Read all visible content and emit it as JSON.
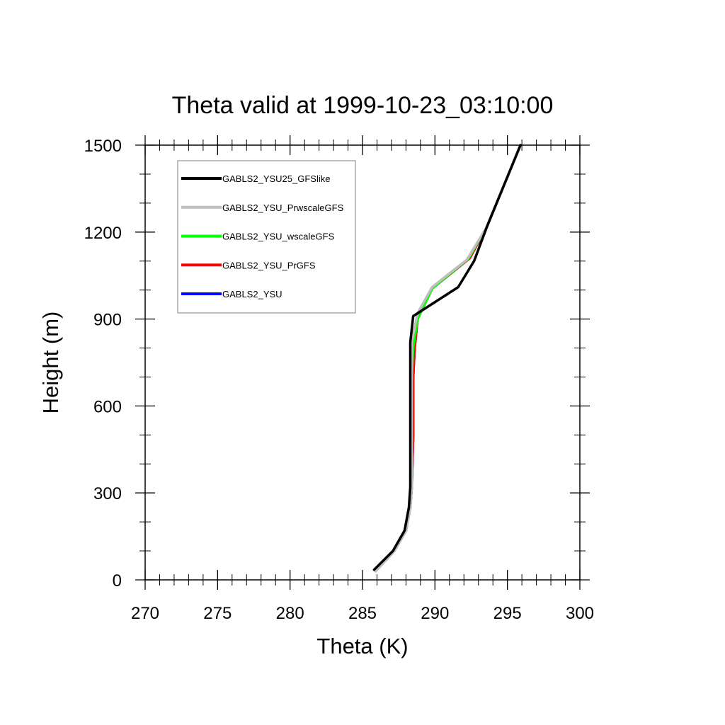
{
  "chart_data": {
    "type": "line",
    "title": "Theta valid at 1999-10-23_03:10:00",
    "xlabel": "Theta (K)",
    "ylabel": "Height (m)",
    "xlim": [
      270,
      300
    ],
    "ylim": [
      0,
      1500
    ],
    "x_ticks": [
      "270",
      "275",
      "280",
      "285",
      "290",
      "295",
      "300"
    ],
    "y_ticks": [
      "0",
      "300",
      "600",
      "900",
      "1200",
      "1500"
    ],
    "x_tick_values": [
      270,
      275,
      280,
      285,
      290,
      295,
      300
    ],
    "y_tick_values": [
      0,
      300,
      600,
      900,
      1200,
      1500
    ],
    "x_minor_step": 1,
    "y_minor_step": 100,
    "grid": false,
    "legend_position": "top-left",
    "series": [
      {
        "name": "GABLS2_YSU",
        "color": "#0000ff",
        "points": [
          [
            285.9,
            30
          ],
          [
            287.2,
            100
          ],
          [
            288.0,
            170
          ],
          [
            288.3,
            250
          ],
          [
            288.4,
            320
          ],
          [
            288.5,
            500
          ],
          [
            288.5,
            700
          ],
          [
            288.6,
            800
          ],
          [
            288.8,
            900
          ],
          [
            289.8,
            1005
          ],
          [
            292.4,
            1110
          ],
          [
            293.6,
            1220
          ],
          [
            295.9,
            1500
          ]
        ]
      },
      {
        "name": "GABLS2_YSU_PrGFS",
        "color": "#ff0000",
        "points": [
          [
            285.9,
            30
          ],
          [
            287.2,
            100
          ],
          [
            288.0,
            170
          ],
          [
            288.3,
            250
          ],
          [
            288.4,
            320
          ],
          [
            288.5,
            500
          ],
          [
            288.5,
            700
          ],
          [
            288.6,
            800
          ],
          [
            288.8,
            900
          ],
          [
            289.8,
            1005
          ],
          [
            292.4,
            1110
          ],
          [
            293.6,
            1220
          ],
          [
            295.9,
            1500
          ]
        ]
      },
      {
        "name": "GABLS2_YSU_wscaleGFS",
        "color": "#00ff00",
        "points": [
          [
            285.9,
            30
          ],
          [
            287.2,
            100
          ],
          [
            288.0,
            170
          ],
          [
            288.3,
            250
          ],
          [
            288.4,
            320
          ],
          [
            288.4,
            500
          ],
          [
            288.4,
            700
          ],
          [
            288.5,
            800
          ],
          [
            288.8,
            900
          ],
          [
            289.8,
            1005
          ],
          [
            292.3,
            1108
          ],
          [
            293.6,
            1220
          ],
          [
            295.9,
            1500
          ]
        ]
      },
      {
        "name": "GABLS2_YSU_PrwscaleGFS",
        "color": "#bfbfbf",
        "points": [
          [
            285.9,
            30
          ],
          [
            287.2,
            100
          ],
          [
            288.0,
            170
          ],
          [
            288.3,
            250
          ],
          [
            288.4,
            320
          ],
          [
            288.4,
            500
          ],
          [
            288.4,
            700
          ],
          [
            288.4,
            820
          ],
          [
            288.8,
            920
          ],
          [
            289.8,
            1010
          ],
          [
            292.2,
            1105
          ],
          [
            293.6,
            1220
          ],
          [
            295.9,
            1500
          ]
        ]
      },
      {
        "name": "GABLS2_YSU25_GFSlike",
        "color": "#000000",
        "points": [
          [
            285.8,
            35
          ],
          [
            287.1,
            100
          ],
          [
            287.9,
            170
          ],
          [
            288.2,
            250
          ],
          [
            288.3,
            320
          ],
          [
            288.3,
            500
          ],
          [
            288.3,
            700
          ],
          [
            288.3,
            820
          ],
          [
            288.5,
            910
          ],
          [
            291.6,
            1010
          ],
          [
            292.7,
            1100
          ],
          [
            293.6,
            1220
          ],
          [
            295.9,
            1500
          ]
        ]
      }
    ],
    "legend": [
      {
        "label": "GABLS2_YSU25_GFSlike",
        "color": "#000000"
      },
      {
        "label": "GABLS2_YSU_PrwscaleGFS",
        "color": "#bfbfbf"
      },
      {
        "label": "GABLS2_YSU_wscaleGFS",
        "color": "#00ff00"
      },
      {
        "label": "GABLS2_YSU_PrGFS",
        "color": "#ff0000"
      },
      {
        "label": "GABLS2_YSU",
        "color": "#0000ff"
      }
    ]
  }
}
